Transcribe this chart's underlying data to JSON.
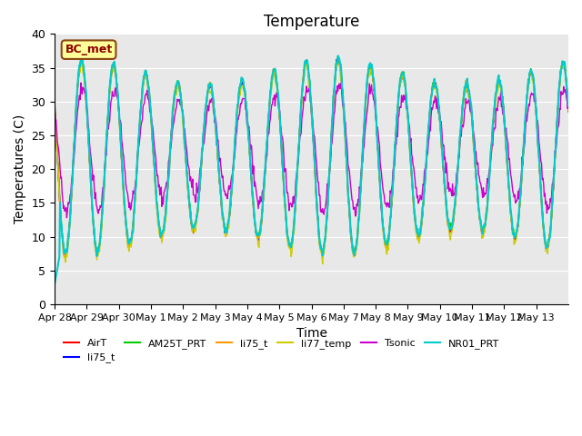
{
  "title": "Temperature",
  "ylabel": "Temperatures (C)",
  "xlabel": "Time",
  "annotation": "BC_met",
  "ylim": [
    0,
    40
  ],
  "legend": [
    {
      "label": "AirT",
      "color": "#ff0000"
    },
    {
      "label": "li75_t",
      "color": "#0000ff"
    },
    {
      "label": "AM25T_PRT",
      "color": "#00cc00"
    },
    {
      "label": "li75_t",
      "color": "#ff9900"
    },
    {
      "label": "li77_temp",
      "color": "#cccc00"
    },
    {
      "label": "Tsonic",
      "color": "#cc00cc"
    },
    {
      "label": "NR01_PRT",
      "color": "#00cccc"
    }
  ],
  "x_ticks": [
    "Apr 28",
    "Apr 29",
    "Apr 30",
    "May 1",
    "May 2",
    "May 3",
    "May 4",
    "May 5",
    "May 6",
    "May 7",
    "May 8",
    "May 9",
    "May 10",
    "May 11",
    "May 12",
    "May 13"
  ],
  "yticks": [
    0,
    5,
    10,
    15,
    20,
    25,
    30,
    35,
    40
  ],
  "bg_color": "#e8e8e8",
  "title_fontsize": 12,
  "axis_fontsize": 10,
  "tick_fontsize": 8
}
